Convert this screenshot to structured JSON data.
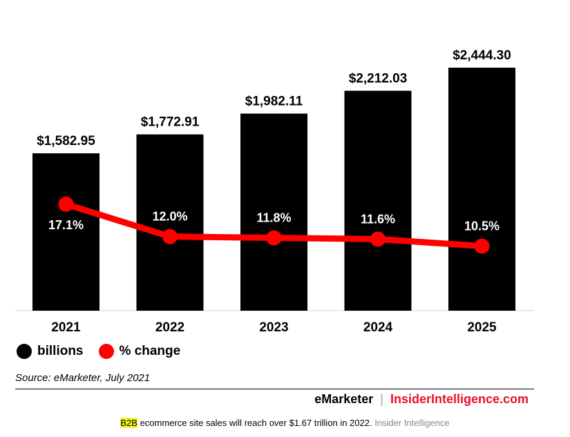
{
  "chart_data": {
    "type": "bar",
    "categories": [
      "2021",
      "2022",
      "2023",
      "2024",
      "2025"
    ],
    "series": [
      {
        "name": "billions",
        "kind": "bar",
        "values": [
          1582.95,
          1772.91,
          1982.11,
          2212.03,
          2444.3
        ],
        "labels": [
          "$1,582.95",
          "$1,772.91",
          "$1,982.11",
          "$2,212.03",
          "$2,444.30"
        ],
        "color": "#000000"
      },
      {
        "name": "% change",
        "kind": "line",
        "values": [
          17.1,
          12.0,
          11.8,
          11.6,
          10.5
        ],
        "labels": [
          "17.1%",
          "12.0%",
          "11.8%",
          "11.6%",
          "10.5%"
        ],
        "color": "#ff0000"
      }
    ],
    "title": "",
    "xlabel": "",
    "ylabel": "",
    "ylim_bars": [
      0,
      2800
    ],
    "ylim_line": [
      0,
      35
    ],
    "grid": false,
    "legend_position": "bottom-left"
  },
  "legend": {
    "bars_label": "billions",
    "line_label": "% change"
  },
  "source": "Source: eMarketer, July 2021",
  "brand": {
    "emarketer": "eMarketer",
    "separator": "|",
    "insider": "InsiderIntelligence.com"
  },
  "caption": {
    "highlight": "B2B",
    "text": " ecommerce site sales will reach over $1.67 trillion in 2022.",
    "credit": " Insider Intelligence"
  }
}
